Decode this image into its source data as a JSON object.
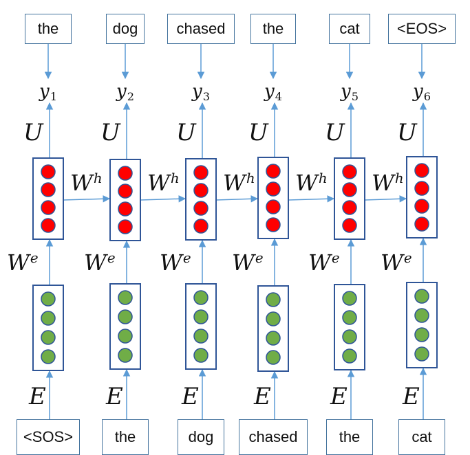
{
  "output_words": [
    "the",
    "dog",
    "chased",
    "the",
    "cat",
    "<EOS>"
  ],
  "input_words": [
    "<SOS>",
    "the",
    "dog",
    "chased",
    "the",
    "cat"
  ],
  "outputs": [
    {
      "symbol": "y",
      "index": "1"
    },
    {
      "symbol": "y",
      "index": "2"
    },
    {
      "symbol": "y",
      "index": "3"
    },
    {
      "symbol": "y",
      "index": "4"
    },
    {
      "symbol": "y",
      "index": "5"
    },
    {
      "symbol": "y",
      "index": "6"
    }
  ],
  "weights": {
    "output": "U",
    "hidden": {
      "base": "W",
      "sup": "h"
    },
    "embedding_proj": {
      "base": "W",
      "sup": "e"
    },
    "embedding": "E"
  },
  "nodes_per_layer": 4,
  "colors": {
    "hidden_node": "#ff0000",
    "embed_node": "#70ad47",
    "node_stroke": "#2f5597",
    "box_stroke": "#2f5597",
    "arrow": "#5b9bd5",
    "word_box_stroke": "#41719c"
  }
}
